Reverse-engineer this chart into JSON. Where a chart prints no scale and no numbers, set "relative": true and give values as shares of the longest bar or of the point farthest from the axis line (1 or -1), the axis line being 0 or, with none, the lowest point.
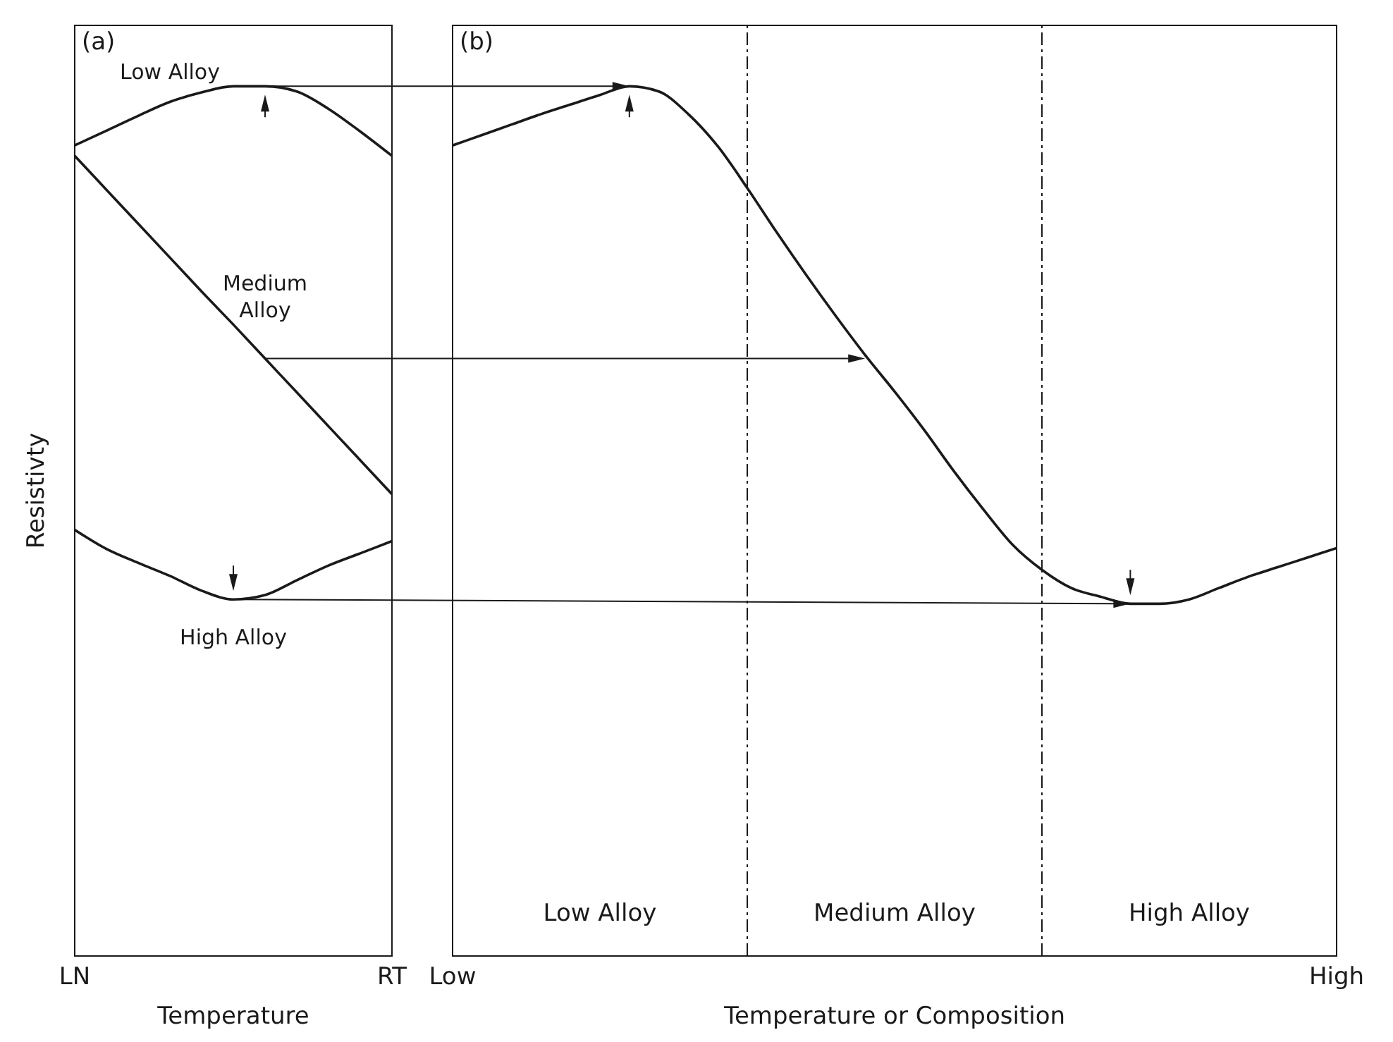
{
  "chart_data": [
    {
      "type": "line",
      "title": "(a)",
      "xlabel": "Temperature",
      "ylabel": "Resistivty",
      "relative": true,
      "categories": [
        "LN",
        null,
        null,
        null,
        null,
        null,
        null,
        null,
        null,
        null,
        "RT"
      ],
      "series": [
        {
          "name": "Low Alloy",
          "color": "#1a1a1a",
          "values": [
            0.932,
            0.949,
            0.966,
            0.982,
            0.993,
            1,
            1,
            0.994,
            0.974,
            0.948,
            0.92
          ]
        },
        {
          "name": "Medium Alloy",
          "color": "#1a1a1a",
          "values": [
            0.92,
            0.881,
            0.842,
            0.803,
            0.764,
            0.726,
            0.687,
            0.648,
            0.609,
            0.57,
            0.531
          ]
        },
        {
          "name": "High Alloy",
          "color": "#1a1a1a",
          "values": [
            0.49,
            0.468,
            0.452,
            0.437,
            0.42,
            0.41,
            0.415,
            0.432,
            0.449,
            0.463,
            0.477
          ]
        }
      ]
    },
    {
      "type": "line",
      "title": "(b)",
      "xlabel": "Temperature or Composition",
      "relative": true,
      "categories": [
        "Low",
        null,
        null,
        null,
        null,
        null,
        null,
        null,
        null,
        null,
        null,
        null,
        null,
        null,
        null,
        null,
        null,
        null,
        null,
        null,
        null,
        null,
        null,
        null,
        null,
        null,
        null,
        null,
        null,
        null,
        "High"
      ],
      "series": [
        {
          "color": "#1a1a1a",
          "values": [
            0.932,
            0.944,
            0.956,
            0.968,
            0.979,
            0.99,
            1,
            0.994,
            0.968,
            0.931,
            0.883,
            0.832,
            0.783,
            0.736,
            0.691,
            0.649,
            0.605,
            0.558,
            0.514,
            0.473,
            0.444,
            0.423,
            0.413,
            0.405,
            0.405,
            0.41,
            0.423,
            0.436,
            0.447,
            0.458,
            0.469
          ]
        }
      ],
      "annotations": [
        "Low Alloy",
        "Medium Alloy",
        "High Alloy"
      ]
    }
  ]
}
